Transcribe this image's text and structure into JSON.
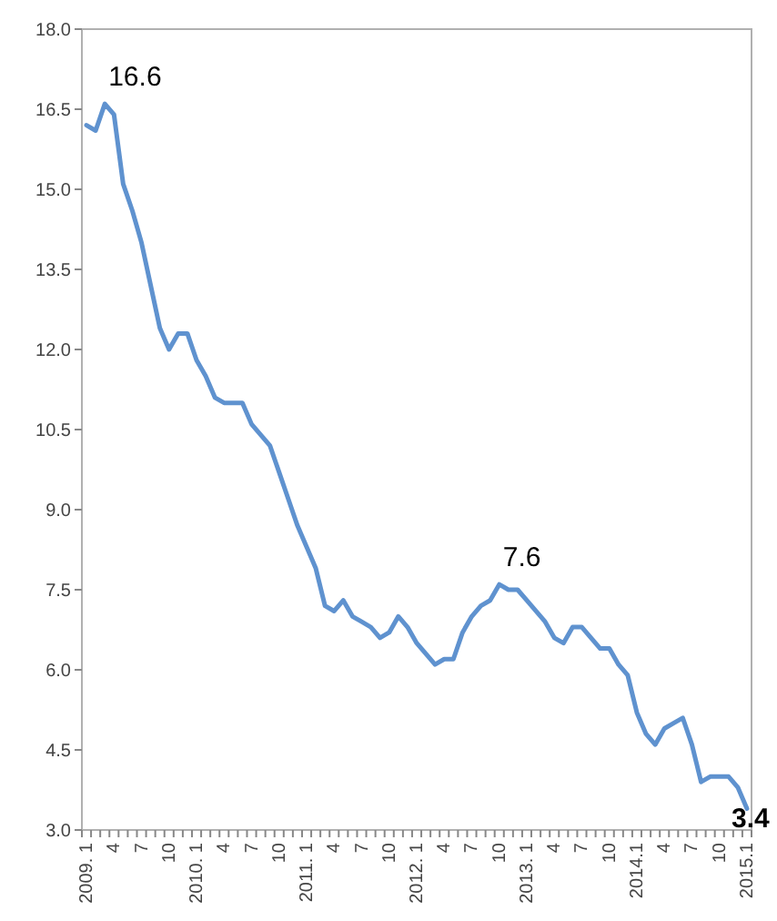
{
  "chart_data": {
    "type": "line",
    "categories": [
      "2009. 1",
      null,
      null,
      "4",
      null,
      null,
      "7",
      null,
      null,
      "10",
      null,
      null,
      "2010. 1",
      null,
      null,
      "4",
      null,
      null,
      "7",
      null,
      null,
      "10",
      null,
      null,
      "2011. 1",
      null,
      null,
      "4",
      null,
      null,
      "7",
      null,
      null,
      "10",
      null,
      null,
      "2012. 1",
      null,
      null,
      "4",
      null,
      null,
      "7",
      null,
      null,
      "10",
      null,
      null,
      "2013. 1",
      null,
      null,
      "4",
      null,
      null,
      "7",
      null,
      null,
      "10",
      null,
      null,
      "2014.1",
      null,
      null,
      "4",
      null,
      null,
      "7",
      null,
      null,
      "10",
      null,
      null,
      "2015.1"
    ],
    "series": [
      {
        "color": "#5f92cf",
        "values": [
          16.2,
          16.1,
          16.6,
          16.4,
          15.1,
          14.6,
          14.0,
          13.2,
          12.4,
          12.0,
          12.3,
          12.3,
          11.8,
          11.5,
          11.1,
          11.0,
          11.0,
          11.0,
          10.6,
          10.4,
          10.2,
          9.7,
          9.2,
          8.7,
          8.3,
          7.9,
          7.2,
          7.1,
          7.3,
          7.0,
          6.9,
          6.8,
          6.6,
          6.7,
          7.0,
          6.8,
          6.5,
          6.3,
          6.1,
          6.2,
          6.2,
          6.7,
          7.0,
          7.2,
          7.3,
          7.6,
          7.5,
          7.5,
          7.3,
          7.1,
          6.9,
          6.6,
          6.5,
          6.8,
          6.8,
          6.6,
          6.4,
          6.4,
          6.1,
          5.9,
          5.2,
          4.8,
          4.6,
          4.9,
          5.0,
          5.1,
          4.6,
          3.9,
          4.0,
          4.0,
          4.0,
          3.8,
          3.4
        ],
        "value_labels": [
          null,
          null,
          "16.6",
          null,
          null,
          null,
          null,
          null,
          null,
          null,
          null,
          null,
          null,
          null,
          null,
          null,
          null,
          null,
          null,
          null,
          null,
          null,
          null,
          null,
          null,
          null,
          null,
          null,
          null,
          null,
          null,
          null,
          null,
          null,
          null,
          null,
          null,
          null,
          null,
          null,
          null,
          null,
          null,
          null,
          null,
          "7.6",
          null,
          null,
          null,
          null,
          null,
          null,
          null,
          null,
          null,
          null,
          null,
          null,
          null,
          null,
          null,
          null,
          null,
          null,
          null,
          null,
          null,
          null,
          null,
          null,
          null,
          null,
          "3.4"
        ]
      }
    ],
    "ylim": [
      3,
      18
    ],
    "yticks": [
      {
        "value": 3,
        "label": "3.0"
      },
      {
        "value": 4.5,
        "label": "4.5"
      },
      {
        "value": 6,
        "label": "6.0"
      },
      {
        "value": 7.5,
        "label": "7.5"
      },
      {
        "value": 9,
        "label": "9.0"
      },
      {
        "value": 10.5,
        "label": "10.5"
      },
      {
        "value": 12,
        "label": "12.0"
      },
      {
        "value": 13.5,
        "label": "13.5"
      },
      {
        "value": 15,
        "label": "15.0"
      },
      {
        "value": 16.5,
        "label": "16.5"
      },
      {
        "value": 18,
        "label": "18.0"
      }
    ],
    "grid": false,
    "marker": "none",
    "line_style": "solid"
  }
}
